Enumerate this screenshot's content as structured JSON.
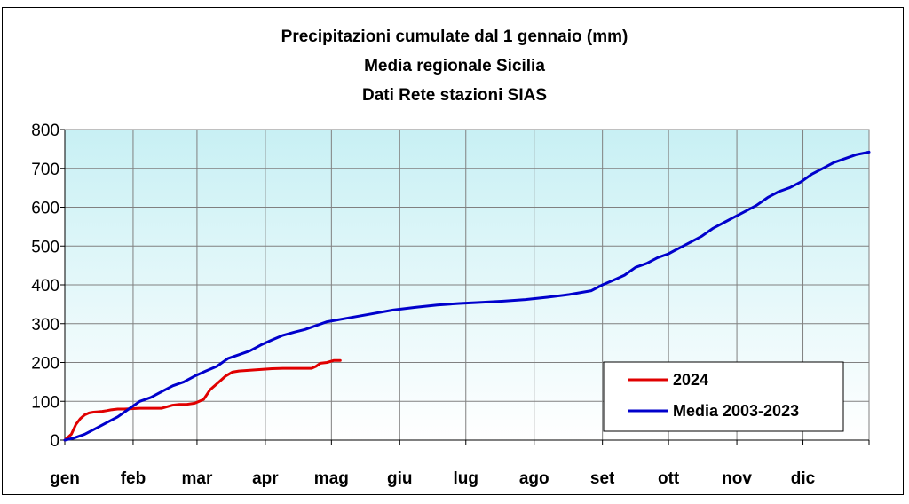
{
  "chart_data": {
    "type": "line",
    "title": [
      "Precipitazioni cumulate dal 1 gennaio (mm)",
      "Media regionale Sicilia",
      "Dati Rete stazioni SIAS"
    ],
    "xlabel": "",
    "ylabel": "",
    "ylim": [
      0,
      800
    ],
    "yticks": [
      "0",
      "100",
      "200",
      "300",
      "400",
      "500",
      "600",
      "700",
      "800"
    ],
    "xticks": [
      "gen",
      "feb",
      "mar",
      "apr",
      "mag",
      "giu",
      "lug",
      "ago",
      "set",
      "ott",
      "nov",
      "dic"
    ],
    "x_unit": "day of year (1 = 1 gennaio)",
    "grid": true,
    "legend_position": "bottom-right",
    "series": [
      {
        "name": "2024",
        "color": "#e00000",
        "x": [
          1,
          4,
          6,
          8,
          10,
          12,
          14,
          16,
          18,
          20,
          22,
          25,
          28,
          31,
          35,
          40,
          45,
          50,
          53,
          56,
          60,
          62,
          64,
          67,
          69,
          71,
          74,
          77,
          80,
          85,
          90,
          95,
          100,
          105,
          110,
          113,
          115,
          117,
          120,
          123,
          126
        ],
        "y": [
          0,
          15,
          40,
          55,
          65,
          70,
          72,
          73,
          74,
          76,
          78,
          80,
          80,
          81,
          82,
          82,
          82,
          90,
          92,
          92,
          95,
          100,
          105,
          130,
          140,
          150,
          165,
          175,
          178,
          180,
          182,
          184,
          185,
          185,
          185,
          185,
          190,
          198,
          200,
          205,
          205
        ]
      },
      {
        "name": "Media 2003-2023",
        "color": "#0000cc",
        "x": [
          1,
          5,
          10,
          15,
          20,
          25,
          30,
          35,
          40,
          45,
          50,
          55,
          60,
          65,
          70,
          75,
          80,
          85,
          90,
          95,
          100,
          105,
          110,
          115,
          120,
          130,
          140,
          150,
          160,
          170,
          180,
          190,
          200,
          210,
          220,
          230,
          240,
          245,
          250,
          255,
          260,
          265,
          270,
          275,
          280,
          285,
          290,
          295,
          300,
          305,
          310,
          315,
          320,
          325,
          330,
          335,
          340,
          345,
          350,
          355,
          360,
          366
        ],
        "y": [
          0,
          5,
          15,
          30,
          45,
          60,
          80,
          100,
          110,
          125,
          140,
          150,
          165,
          178,
          190,
          210,
          220,
          230,
          245,
          258,
          270,
          278,
          285,
          295,
          305,
          315,
          325,
          335,
          342,
          348,
          352,
          355,
          358,
          362,
          368,
          375,
          385,
          400,
          412,
          425,
          445,
          455,
          470,
          480,
          495,
          510,
          525,
          545,
          560,
          575,
          590,
          605,
          625,
          640,
          650,
          665,
          685,
          700,
          715,
          725,
          735,
          742
        ]
      }
    ]
  }
}
